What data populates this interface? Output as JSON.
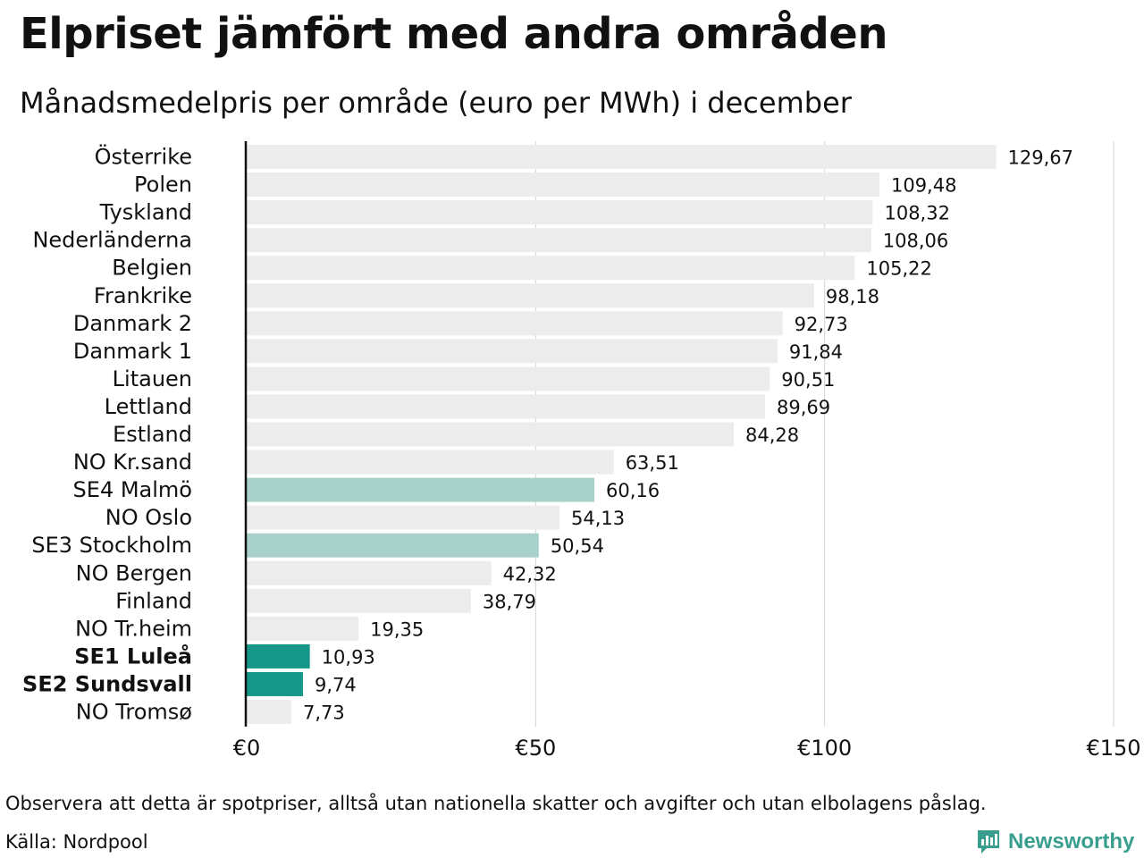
{
  "header": {
    "title": "Elpriset jämfört med andra områden",
    "subtitle": "Månadsmedelpris per område (euro per MWh) i december"
  },
  "footer": {
    "note": "Observera att detta är spotpriser, alltså utan nationella skatter och avgifter och utan elbolagens påslag.",
    "source": "Källa: Nordpool",
    "brand": "Newsworthy"
  },
  "colors": {
    "default_bar": "#ececec",
    "se3_se4_bar": "#a8d1c9",
    "se1_se2_bar": "#16978a",
    "axis_line": "#111111",
    "grid": "#d4d4d4",
    "brand": "#3a9e8f"
  },
  "chart_data": {
    "type": "bar",
    "orientation": "horizontal",
    "title": "",
    "xlabel": "",
    "ylabel": "",
    "xlim": [
      0,
      150
    ],
    "grid": true,
    "x_ticks": [
      0,
      50,
      100,
      150
    ],
    "x_tick_labels": [
      "€0",
      "€50",
      "€100",
      "€150"
    ],
    "categories": [
      "Österrike",
      "Polen",
      "Tyskland",
      "Nederländerna",
      "Belgien",
      "Frankrike",
      "Danmark  2",
      "Danmark  1",
      "Litauen",
      "Lettland",
      "Estland",
      "NO Kr.sand",
      "SE4  Malmö",
      "NO Oslo",
      "SE3  Stockholm",
      "NO Bergen",
      "Finland",
      "NO Tr.heim",
      "SE1 Luleå",
      "SE2 Sundsvall",
      "NO Tromsø"
    ],
    "values": [
      129.67,
      109.48,
      108.32,
      108.06,
      105.22,
      98.18,
      92.73,
      91.84,
      90.51,
      89.69,
      84.28,
      63.51,
      60.16,
      54.13,
      50.54,
      42.32,
      38.79,
      19.35,
      10.93,
      9.74,
      7.73
    ],
    "value_labels": [
      "129,67",
      "109,48",
      "108,32",
      "108,06",
      "105,22",
      "98,18",
      "92,73",
      "91,84",
      "90,51",
      "89,69",
      "84,28",
      "63,51",
      "60,16",
      "54,13",
      "50,54",
      "42,32",
      "38,79",
      "19,35",
      "10,93",
      "9,74",
      "7,73"
    ],
    "highlight": [
      "default",
      "default",
      "default",
      "default",
      "default",
      "default",
      "default",
      "default",
      "default",
      "default",
      "default",
      "default",
      "medium",
      "default",
      "medium",
      "default",
      "default",
      "default",
      "strong",
      "strong",
      "default"
    ],
    "bold_labels": [
      false,
      false,
      false,
      false,
      false,
      false,
      false,
      false,
      false,
      false,
      false,
      false,
      false,
      false,
      false,
      false,
      false,
      false,
      true,
      true,
      false
    ]
  }
}
